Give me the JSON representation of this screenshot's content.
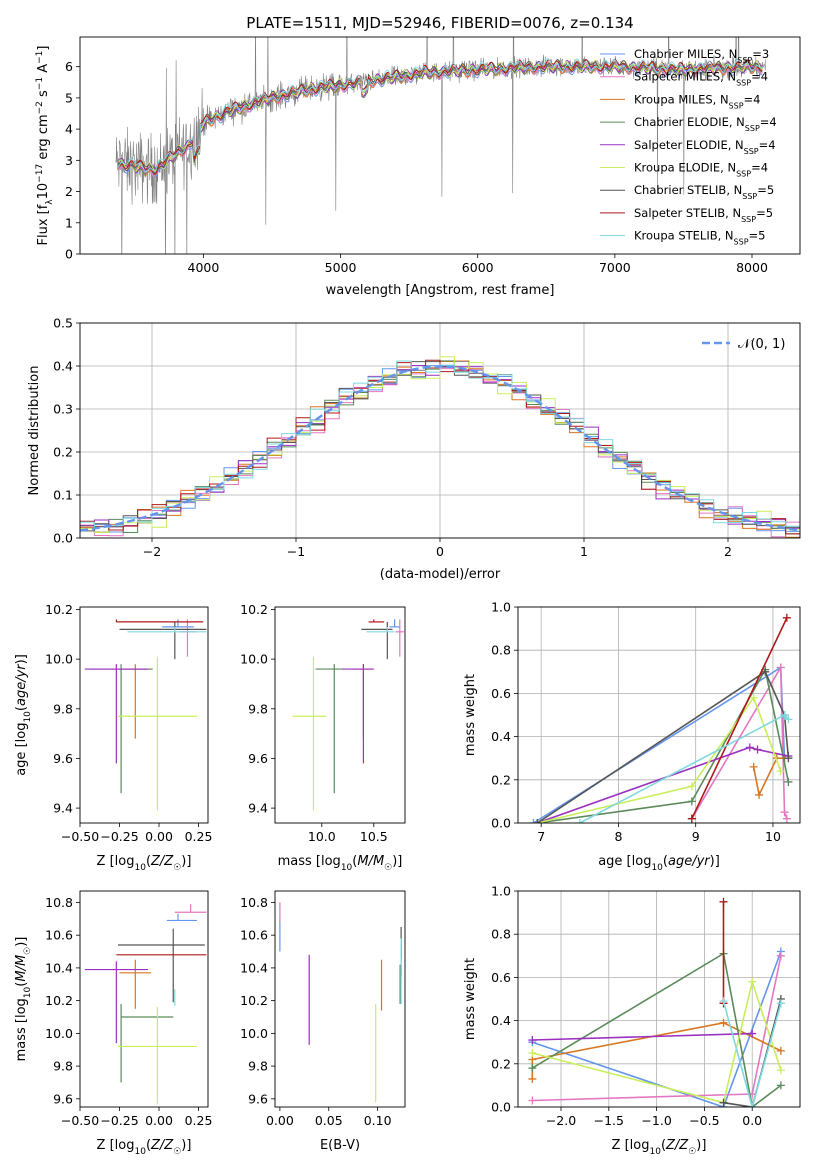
{
  "figure_title": "PLATE=1511, MJD=52946, FIBERID=0076, z=0.134",
  "colors": {
    "Chabrier MILES": "#6495ED",
    "Salpeter MILES": "#e377c2",
    "Kroupa MILES": "#d97622",
    "Chabrier ELODIE": "#5a8a5a",
    "Salpeter ELODIE": "#9b30c0",
    "Kroupa ELODIE": "#c8ef5a",
    "Chabrier STELIB": "#555555",
    "Salpeter STELIB": "#b01818",
    "Kroupa STELIB": "#7fd8e0",
    "observed": "#808080"
  },
  "chart_data": [
    {
      "id": "spectrum",
      "type": "line",
      "title": "PLATE=1511, MJD=52946, FIBERID=0076, z=0.134",
      "xlabel": "wavelength [Angstrom, rest frame]",
      "ylabel": "Flux [f",
      "xlim": [
        3100,
        8350
      ],
      "ylim": [
        0,
        6.95
      ],
      "xticks": [
        4000,
        5000,
        6000,
        7000,
        8000
      ],
      "yticks": [
        0,
        1,
        2,
        3,
        4,
        5,
        6
      ],
      "legend_position": "top-right",
      "legend": [
        {
          "name": "Chabrier MILES",
          "nssp": "3"
        },
        {
          "name": "Salpeter MILES",
          "nssp": "4"
        },
        {
          "name": "Kroupa MILES",
          "nssp": "4"
        },
        {
          "name": "Chabrier ELODIE",
          "nssp": "4"
        },
        {
          "name": "Salpeter ELODIE",
          "nssp": "4"
        },
        {
          "name": "Kroupa ELODIE",
          "nssp": "4"
        },
        {
          "name": "Chabrier STELIB",
          "nssp": "5"
        },
        {
          "name": "Salpeter STELIB",
          "nssp": "5"
        },
        {
          "name": "Kroupa STELIB",
          "nssp": "5"
        }
      ],
      "continuum": [
        [
          3350,
          2.9
        ],
        [
          3500,
          2.8
        ],
        [
          3650,
          2.7
        ],
        [
          3800,
          3.2
        ],
        [
          3900,
          3.5
        ],
        [
          4000,
          4.2
        ],
        [
          4200,
          4.6
        ],
        [
          4500,
          5.0
        ],
        [
          4800,
          5.3
        ],
        [
          5000,
          5.4
        ],
        [
          5300,
          5.6
        ],
        [
          5600,
          5.8
        ],
        [
          6000,
          5.9
        ],
        [
          6500,
          6.0
        ],
        [
          7000,
          6.0
        ],
        [
          7500,
          5.9
        ],
        [
          8000,
          6.0
        ],
        [
          8100,
          6.0
        ]
      ]
    },
    {
      "id": "residuals",
      "type": "line",
      "xlabel": "(data-model)/error",
      "ylabel": "Normed distribution",
      "xlim": [
        -2.5,
        2.5
      ],
      "ylim": [
        0,
        0.5
      ],
      "xticks": [
        -2,
        -1,
        0,
        1,
        2
      ],
      "yticks": [
        0.0,
        0.1,
        0.2,
        0.3,
        0.4,
        0.5
      ],
      "grid": true,
      "legend_position": "top-right",
      "legend": [
        "𝒩(0, 1)"
      ]
    },
    {
      "id": "age_vs_Z",
      "type": "scatter",
      "xlabel": "Z [log10(Z/Z☉)]",
      "ylabel": "age  [log10(age/yr)]",
      "xlim": [
        -0.5,
        0.31
      ],
      "ylim": [
        9.34,
        10.21
      ],
      "xticks": [
        -0.5,
        -0.25,
        0.0,
        0.25
      ],
      "yticks": [
        9.4,
        9.6,
        9.8,
        10.0,
        10.2
      ],
      "points": [
        {
          "model": "Chabrier MILES",
          "x": 0.12,
          "y": 10.13,
          "xerr": [
            0.1,
            0.1
          ],
          "yerr": [
            0.0,
            0.03
          ]
        },
        {
          "model": "Salpeter MILES",
          "x": 0.18,
          "y": 10.11,
          "xerr": [
            0.05,
            0.05
          ],
          "yerr": [
            0.1,
            0.05
          ]
        },
        {
          "model": "Kroupa MILES",
          "x": -0.15,
          "y": 9.96,
          "xerr": [
            0.1,
            0.1
          ],
          "yerr": [
            0.28,
            0.02
          ]
        },
        {
          "model": "Chabrier ELODIE",
          "x": -0.24,
          "y": 9.96,
          "xerr": [
            0.2,
            0.2
          ],
          "yerr": [
            0.5,
            0.02
          ]
        },
        {
          "model": "Salpeter ELODIE",
          "x": -0.27,
          "y": 9.96,
          "xerr": [
            0.2,
            0.2
          ],
          "yerr": [
            0.38,
            0.02
          ]
        },
        {
          "model": "Kroupa ELODIE",
          "x": -0.01,
          "y": 9.77,
          "xerr": [
            0.25,
            0.25
          ],
          "yerr": [
            0.38,
            0.24
          ]
        },
        {
          "model": "Chabrier STELIB",
          "x": 0.1,
          "y": 10.12,
          "xerr": [
            0.35,
            0.2
          ],
          "yerr": [
            0.12,
            0.03
          ]
        },
        {
          "model": "Salpeter STELIB",
          "x": -0.27,
          "y": 10.15,
          "xerr": [
            0.0,
            0.55
          ],
          "yerr": [
            0.0,
            0.01
          ]
        },
        {
          "model": "Kroupa STELIB",
          "x": 0.1,
          "y": 10.11,
          "xerr": [
            0.3,
            0.2
          ],
          "yerr": [
            0.0,
            0.02
          ]
        }
      ]
    },
    {
      "id": "age_vs_mass",
      "type": "scatter",
      "xlabel": "mass [log10(M/M☉)]",
      "ylabel": "",
      "xlim": [
        9.55,
        10.8
      ],
      "ylim": [
        9.34,
        10.21
      ],
      "xticks": [
        10.0,
        10.5
      ],
      "yticks": [
        9.4,
        9.6,
        9.8,
        10.0,
        10.2
      ],
      "points": [
        {
          "model": "Chabrier MILES",
          "x": 10.7,
          "y": 10.13,
          "xerr": [
            0.05,
            0.05
          ],
          "yerr": [
            0.0,
            0.03
          ]
        },
        {
          "model": "Salpeter MILES",
          "x": 10.75,
          "y": 10.11,
          "xerr": [
            0.04,
            0.04
          ],
          "yerr": [
            0.1,
            0.05
          ]
        },
        {
          "model": "Kroupa MILES",
          "x": 10.4,
          "y": 9.96,
          "xerr": [
            0.1,
            0.1
          ],
          "yerr": [
            0.28,
            0.02
          ]
        },
        {
          "model": "Chabrier ELODIE",
          "x": 10.12,
          "y": 9.96,
          "xerr": [
            0.18,
            0.1
          ],
          "yerr": [
            0.5,
            0.02
          ]
        },
        {
          "model": "Salpeter ELODIE",
          "x": 10.4,
          "y": 9.96,
          "xerr": [
            0.2,
            0.1
          ],
          "yerr": [
            0.38,
            0.02
          ]
        },
        {
          "model": "Kroupa ELODIE",
          "x": 9.92,
          "y": 9.77,
          "xerr": [
            0.2,
            0.12
          ],
          "yerr": [
            0.38,
            0.24
          ]
        },
        {
          "model": "Chabrier STELIB",
          "x": 10.63,
          "y": 10.12,
          "xerr": [
            0.25,
            0.05
          ],
          "yerr": [
            0.12,
            0.03
          ]
        },
        {
          "model": "Salpeter STELIB",
          "x": 10.5,
          "y": 10.15,
          "xerr": [
            0.05,
            0.1
          ],
          "yerr": [
            0.0,
            0.01
          ]
        },
        {
          "model": "Kroupa STELIB",
          "x": 10.63,
          "y": 10.11,
          "xerr": [
            0.2,
            0.07
          ],
          "yerr": [
            0.0,
            0.02
          ]
        }
      ]
    },
    {
      "id": "weight_vs_age",
      "type": "line",
      "xlabel": "age  [log10(age/yr)]",
      "ylabel": "mass weight",
      "xlim": [
        6.7,
        10.35
      ],
      "ylim": [
        0,
        1.0
      ],
      "xticks": [
        7,
        8,
        9,
        10
      ],
      "yticks": [
        0.0,
        0.2,
        0.4,
        0.6,
        0.8,
        1.0
      ],
      "grid": true,
      "series": [
        {
          "model": "Chabrier MILES",
          "points": [
            [
              6.9,
              0.0
            ],
            [
              10.1,
              0.72
            ],
            [
              10.15,
              0.3
            ]
          ]
        },
        {
          "model": "Salpeter MILES",
          "points": [
            [
              8.95,
              0.02
            ],
            [
              10.1,
              0.72
            ],
            [
              10.15,
              0.05
            ],
            [
              10.18,
              0.02
            ]
          ]
        },
        {
          "model": "Kroupa MILES",
          "points": [
            [
              9.75,
              0.26
            ],
            [
              9.82,
              0.13
            ],
            [
              10.05,
              0.3
            ],
            [
              10.15,
              0.3
            ]
          ]
        },
        {
          "model": "Chabrier ELODIE",
          "points": [
            [
              6.95,
              0.0
            ],
            [
              8.95,
              0.1
            ],
            [
              9.9,
              0.71
            ],
            [
              10.2,
              0.19
            ]
          ]
        },
        {
          "model": "Salpeter ELODIE",
          "points": [
            [
              6.95,
              0.0
            ],
            [
              9.7,
              0.35
            ],
            [
              9.8,
              0.34
            ],
            [
              10.2,
              0.31
            ]
          ]
        },
        {
          "model": "Kroupa ELODIE",
          "points": [
            [
              6.95,
              0.0
            ],
            [
              8.95,
              0.17
            ],
            [
              9.75,
              0.58
            ],
            [
              10.1,
              0.24
            ]
          ]
        },
        {
          "model": "Chabrier STELIB",
          "points": [
            [
              6.95,
              0.0
            ],
            [
              9.9,
              0.7
            ],
            [
              10.15,
              0.5
            ],
            [
              10.2,
              0.3
            ]
          ]
        },
        {
          "model": "Salpeter STELIB",
          "points": [
            [
              8.95,
              0.02
            ],
            [
              10.18,
              0.95
            ]
          ]
        },
        {
          "model": "Kroupa STELIB",
          "points": [
            [
              7.5,
              0.0
            ],
            [
              10.15,
              0.5
            ],
            [
              10.2,
              0.48
            ]
          ]
        }
      ]
    },
    {
      "id": "mass_vs_Z",
      "type": "scatter",
      "xlabel": "Z [log10(Z/Z☉)]",
      "ylabel": "mass [log10(M/M☉)]",
      "xlim": [
        -0.5,
        0.31
      ],
      "ylim": [
        9.55,
        10.87
      ],
      "xticks": [
        -0.5,
        -0.25,
        0.0,
        0.25
      ],
      "yticks": [
        9.6,
        9.8,
        10.0,
        10.2,
        10.4,
        10.6,
        10.8
      ],
      "points": [
        {
          "model": "Chabrier MILES",
          "x": 0.12,
          "y": 10.69,
          "xerr": [
            0.07,
            0.12
          ],
          "yerr": [
            0.0,
            0.04
          ]
        },
        {
          "model": "Salpeter MILES",
          "x": 0.2,
          "y": 10.74,
          "xerr": [
            0.1,
            0.1
          ],
          "yerr": [
            0.0,
            0.05
          ]
        },
        {
          "model": "Kroupa MILES",
          "x": -0.15,
          "y": 10.37,
          "xerr": [
            0.1,
            0.1
          ],
          "yerr": [
            0.22,
            0.08
          ]
        },
        {
          "model": "Chabrier ELODIE",
          "x": -0.24,
          "y": 10.1,
          "xerr": [
            0.0,
            0.33
          ],
          "yerr": [
            0.4,
            0.08
          ]
        },
        {
          "model": "Salpeter ELODIE",
          "x": -0.27,
          "y": 10.39,
          "xerr": [
            0.2,
            0.2
          ],
          "yerr": [
            0.45,
            0.05
          ]
        },
        {
          "model": "Kroupa ELODIE",
          "x": -0.01,
          "y": 9.92,
          "xerr": [
            0.25,
            0.25
          ],
          "yerr": [
            0.35,
            0.24
          ]
        },
        {
          "model": "Chabrier STELIB",
          "x": 0.09,
          "y": 10.54,
          "xerr": [
            0.35,
            0.2
          ],
          "yerr": [
            0.35,
            0.1
          ]
        },
        {
          "model": "Salpeter STELIB",
          "x": -0.27,
          "y": 10.48,
          "xerr": [
            0.0,
            0.57
          ],
          "yerr": [
            0.0,
            0.0
          ]
        },
        {
          "model": "Kroupa STELIB",
          "x": 0.1,
          "y": 10.22,
          "xerr": [
            0.0,
            0.0
          ],
          "yerr": [
            0.05,
            0.05
          ]
        }
      ]
    },
    {
      "id": "mass_vs_ebv",
      "type": "scatter",
      "xlabel": "E(B-V)",
      "ylabel": "",
      "xlim": [
        -0.005,
        0.128
      ],
      "ylim": [
        9.55,
        10.87
      ],
      "xticks": [
        0.0,
        0.05,
        0.1
      ],
      "yticks": [
        9.6,
        9.8,
        10.0,
        10.2,
        10.4,
        10.6,
        10.8
      ],
      "points": [
        {
          "model": "Chabrier MILES",
          "x": 0.0,
          "y": 10.6,
          "yerr": [
            0.1,
            0.1
          ]
        },
        {
          "model": "Salpeter MILES",
          "x": 0.0,
          "y": 10.72,
          "yerr": [
            0.04,
            0.08
          ]
        },
        {
          "model": "Kroupa MILES",
          "x": 0.104,
          "y": 10.3,
          "yerr": [
            0.16,
            0.15
          ]
        },
        {
          "model": "Chabrier ELODIE",
          "x": 0.123,
          "y": 10.3,
          "yerr": [
            0.12,
            0.12
          ]
        },
        {
          "model": "Salpeter ELODIE",
          "x": 0.03,
          "y": 10.2,
          "yerr": [
            0.27,
            0.28
          ]
        },
        {
          "model": "Kroupa ELODIE",
          "x": 0.098,
          "y": 9.88,
          "yerr": [
            0.3,
            0.3
          ]
        },
        {
          "model": "Chabrier STELIB",
          "x": 0.124,
          "y": 10.5,
          "yerr": [
            0.15,
            0.15
          ]
        },
        {
          "model": "Salpeter STELIB",
          "x": 0.124,
          "y": 10.5,
          "yerr": [
            0.04,
            0.04
          ]
        },
        {
          "model": "Kroupa STELIB",
          "x": 0.124,
          "y": 10.38,
          "yerr": [
            0.2,
            0.2
          ]
        }
      ]
    },
    {
      "id": "weight_vs_Z",
      "type": "line",
      "xlabel": "Z [log10(Z/Z☉)]",
      "ylabel": "mass weight",
      "xlim": [
        -2.45,
        0.5
      ],
      "ylim": [
        0,
        1.0
      ],
      "xticks": [
        -2.0,
        -1.5,
        -1.0,
        -0.5,
        0.0
      ],
      "yticks": [
        0.0,
        0.2,
        0.4,
        0.6,
        0.8,
        1.0
      ],
      "grid": true,
      "series": [
        {
          "model": "Chabrier MILES",
          "points": [
            [
              -2.3,
              0.3
            ],
            [
              -0.3,
              0.0
            ],
            [
              0.3,
              0.72
            ]
          ]
        },
        {
          "model": "Salpeter MILES",
          "points": [
            [
              -2.3,
              0.03
            ],
            [
              0.0,
              0.06
            ],
            [
              0.3,
              0.7
            ]
          ]
        },
        {
          "model": "Kroupa MILES",
          "points": [
            [
              -2.3,
              0.13
            ],
            [
              -2.3,
              0.22
            ],
            [
              -0.3,
              0.39
            ],
            [
              0.3,
              0.26
            ]
          ]
        },
        {
          "model": "Chabrier ELODIE",
          "points": [
            [
              -2.3,
              0.18
            ],
            [
              -0.3,
              0.71
            ],
            [
              0.0,
              0.0
            ],
            [
              0.3,
              0.1
            ]
          ]
        },
        {
          "model": "Salpeter ELODIE",
          "points": [
            [
              -2.3,
              0.31
            ],
            [
              0.0,
              0.34
            ]
          ]
        },
        {
          "model": "Kroupa ELODIE",
          "points": [
            [
              -2.3,
              0.25
            ],
            [
              -0.3,
              0.02
            ],
            [
              0.0,
              0.58
            ],
            [
              0.3,
              0.17
            ]
          ]
        },
        {
          "model": "Chabrier STELIB",
          "points": [
            [
              -0.3,
              0.02
            ],
            [
              0.0,
              0.0
            ],
            [
              0.3,
              0.5
            ]
          ]
        },
        {
          "model": "Salpeter STELIB",
          "points": [
            [
              -0.3,
              0.48
            ],
            [
              -0.3,
              0.95
            ]
          ]
        },
        {
          "model": "Kroupa STELIB",
          "points": [
            [
              -0.3,
              0.49
            ],
            [
              0.0,
              0.0
            ],
            [
              0.3,
              0.48
            ]
          ]
        }
      ]
    }
  ]
}
